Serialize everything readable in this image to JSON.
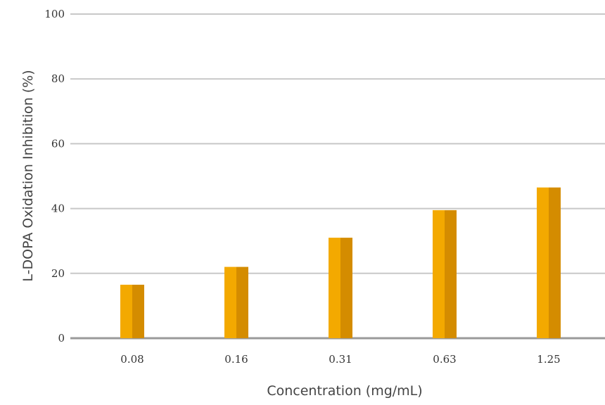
{
  "chart_data": {
    "type": "bar",
    "categories": [
      "0.08",
      "0.16",
      "0.31",
      "0.63",
      "1.25"
    ],
    "values": [
      16.5,
      22,
      31,
      39.5,
      46.5
    ],
    "title": "",
    "xlabel": "Concentration (mg/mL)",
    "ylabel": "L-DOPA Oxidation Inhibition (%)",
    "ylim": [
      0,
      100
    ],
    "yticks": [
      "0",
      "20",
      "40",
      "60",
      "80",
      "100"
    ],
    "grid": "horizontal",
    "legend": "none",
    "colors": {
      "bar_light": "#f3a900",
      "bar_dark": "#d48c00",
      "grid": "#c8c8c8",
      "axis": "#9a9a9a"
    }
  }
}
